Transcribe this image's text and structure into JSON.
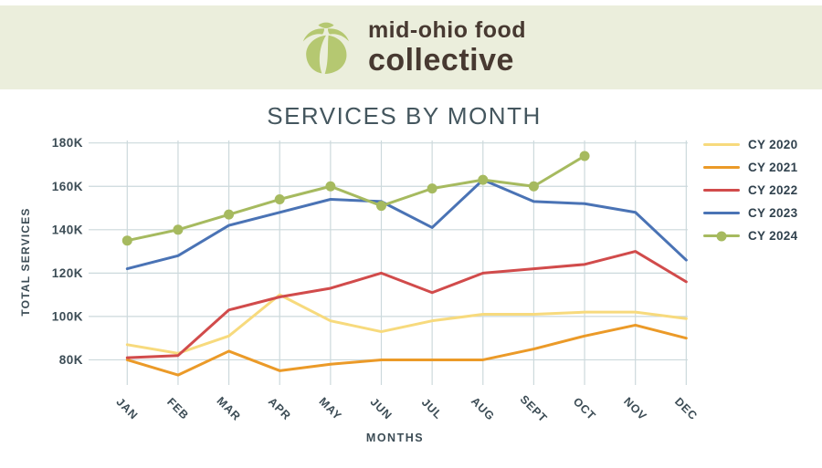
{
  "header": {
    "logo_line1": "mid-ohio food",
    "logo_line2": "collective",
    "logo_icon": "produce-leaves-icon"
  },
  "chart_data": {
    "type": "line",
    "title": "SERVICES BY MONTH",
    "xlabel": "MONTHS",
    "ylabel": "TOTAL SERVICES",
    "unit": "thousands of services (K)",
    "grid": true,
    "legend_position": "right",
    "categories": [
      "JAN",
      "FEB",
      "MAR",
      "APR",
      "MAY",
      "JUN",
      "JUL",
      "AUG",
      "SEPT",
      "OCT",
      "NOV",
      "DEC"
    ],
    "y_ticks": [
      {
        "value": 80,
        "label": "80K"
      },
      {
        "value": 100,
        "label": "100K"
      },
      {
        "value": 120,
        "label": "120K"
      },
      {
        "value": 140,
        "label": "140K"
      },
      {
        "value": 160,
        "label": "160K"
      },
      {
        "value": 180,
        "label": "180K"
      }
    ],
    "ylim": [
      68,
      181
    ],
    "series": [
      {
        "name": "CY 2020",
        "color": "#f7da7d",
        "marker": false,
        "values": [
          87,
          83,
          91,
          110,
          98,
          93,
          98,
          101,
          101,
          102,
          102,
          99
        ]
      },
      {
        "name": "CY 2021",
        "color": "#eb9a28",
        "marker": false,
        "values": [
          80,
          73,
          84,
          75,
          78,
          80,
          80,
          80,
          85,
          91,
          96,
          90
        ]
      },
      {
        "name": "CY 2022",
        "color": "#d14b4b",
        "marker": false,
        "values": [
          81,
          82,
          103,
          109,
          113,
          120,
          111,
          120,
          122,
          124,
          130,
          116
        ]
      },
      {
        "name": "CY 2023",
        "color": "#4a73b5",
        "marker": false,
        "values": [
          122,
          128,
          142,
          148,
          154,
          153,
          141,
          163,
          153,
          152,
          148,
          126
        ]
      },
      {
        "name": "CY 2024",
        "color": "#a6ba5f",
        "marker": true,
        "values": [
          135,
          140,
          147,
          154,
          160,
          151,
          159,
          163,
          160,
          174,
          null,
          null
        ]
      }
    ]
  },
  "colors": {
    "band_bg": "#ebeedc",
    "logo_green": "#b5c871",
    "logo_text": "#473931",
    "title_text": "#44565e",
    "axis_text": "#3c4c55",
    "grid": "#ccd9dc",
    "legend_text": "#31424e"
  }
}
